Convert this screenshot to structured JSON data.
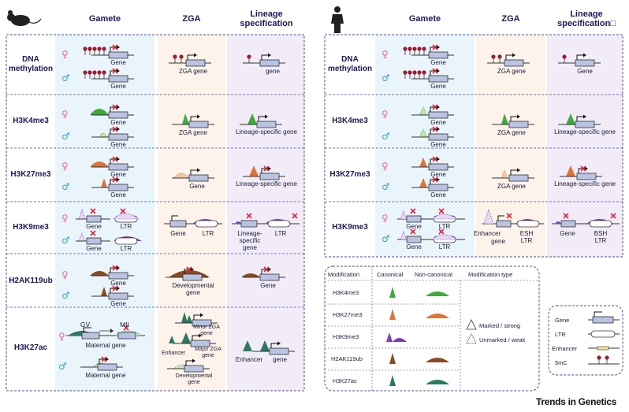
{
  "colors": {
    "gamete_bg": "#eaf5fb",
    "zga_bg": "#fdf3ea",
    "lineage_bg": "#f1ecf8",
    "dash": "#4a4f9a",
    "h3k4me3": "#3eaa3e",
    "h3k27me3": "#e07238",
    "h3k9me3": "#7a3fb5",
    "h2ak119ub": "#8a4a22",
    "h3k27ac": "#2a7a62",
    "meth": "#a01a2e",
    "gene_box": "#b9c3e2",
    "cross": "#d8283a"
  },
  "headers": {
    "mouse": {
      "gamete": "Gamete",
      "zga": "ZGA",
      "lineage": "Lineage specification"
    },
    "human": {
      "gamete": "Gamete",
      "zga": "ZGA",
      "lineage": "Lineage specification□"
    }
  },
  "symbols": {
    "female": "♀",
    "male": "♂"
  },
  "mouse_rows": {
    "dna": {
      "label": "DNA methylation",
      "g1": "Gene",
      "g2": "Gene",
      "zga": "ZGA gene",
      "lin": "gene"
    },
    "k4": {
      "label": "H3K4me3",
      "g1": "Gene",
      "g2": "Gene",
      "zga": "ZGA gene",
      "lin": "Lineage-specific gene"
    },
    "k27": {
      "label": "H3K27me3",
      "g1": "Gene",
      "g2": "Gene",
      "zga": "Gene",
      "lin": "Lineage-specific gene"
    },
    "k9": {
      "label": "H3K9me3",
      "g1a": "Gene",
      "g1b": "LTR",
      "g2a": "Gene",
      "g2b": "LTR",
      "zga_a": "Gene",
      "zga_b": "LTR",
      "lin_a": "Lineage- specific gene",
      "lin_b": "LTR"
    },
    "ub": {
      "label": "H2AK119ub",
      "g1": "Gene",
      "g2": "Gene",
      "zga": "Developmental gene",
      "lin": "Gene"
    },
    "ac": {
      "label": "H3K27ac",
      "gv": "GV",
      "mii": "MII",
      "g1": "Maternal gene",
      "g2": "Maternal gene",
      "zga_minor": "Minor ZGA gene",
      "zga_enh": "Enhancer",
      "zga_major": "Major ZGA gene",
      "zga_dev": "Developmental gene",
      "lin_enh": "Enhancer",
      "lin_gene": "gene"
    }
  },
  "human_rows": {
    "dna": {
      "label": "DNA methylation",
      "g1": "Gene",
      "g2": "Gene",
      "zga": "ZGA gene",
      "lin": "Gene"
    },
    "k4": {
      "label": "H3K4me3",
      "g1": "Gene",
      "g2": "Gene",
      "zga": "ZGA gene",
      "lin": "Lineage-specific gene"
    },
    "k27": {
      "label": "H3K27me3",
      "g1": "Gene",
      "g2": "Gene",
      "zga": "ZGA gene",
      "lin": "Lineage-specific gene"
    },
    "k9": {
      "label": "H3K9me3",
      "g1a": "Gene",
      "g1b": "LTR",
      "g2a": "Gene",
      "g2b": "LTR",
      "zga_enh": "Enhancer",
      "zga_gene": "gene",
      "zga_esh": "ESH LTR",
      "lin_gene": "Gene",
      "lin_bsh": "BSH LTR"
    }
  },
  "legend": {
    "headers": {
      "modification": "Modification",
      "canonical": "Canonical",
      "noncanonical": "Non-canonical",
      "type": "Modification type"
    },
    "rows": [
      "H3K4me3",
      "H3K27me3",
      "H3K9me3",
      "H2AK119ub",
      "H3K27ac"
    ],
    "marked": "Marked / strong",
    "unmarked": "Unmarked / weak"
  },
  "key": {
    "gene": "Gene",
    "ltr": "LTR",
    "enhancer": "Enhancer",
    "mc": "5mC"
  },
  "brand": "Trends in Genetics"
}
